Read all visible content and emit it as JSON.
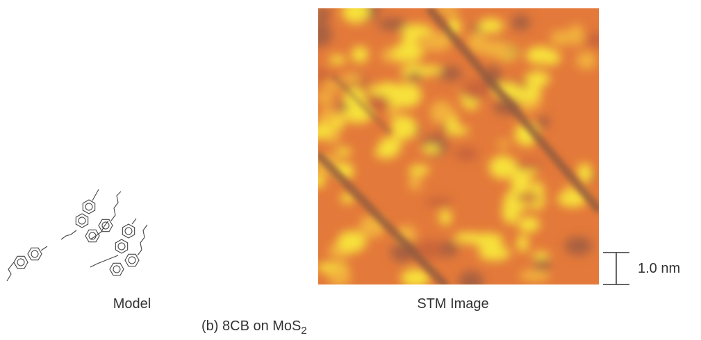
{
  "model_label": "Model",
  "image_label": "STM Image",
  "scale_bar_label": "1.0 nm",
  "caption": {
    "text": "(b)  8CB  on  MoS",
    "subscript": "2"
  }
}
